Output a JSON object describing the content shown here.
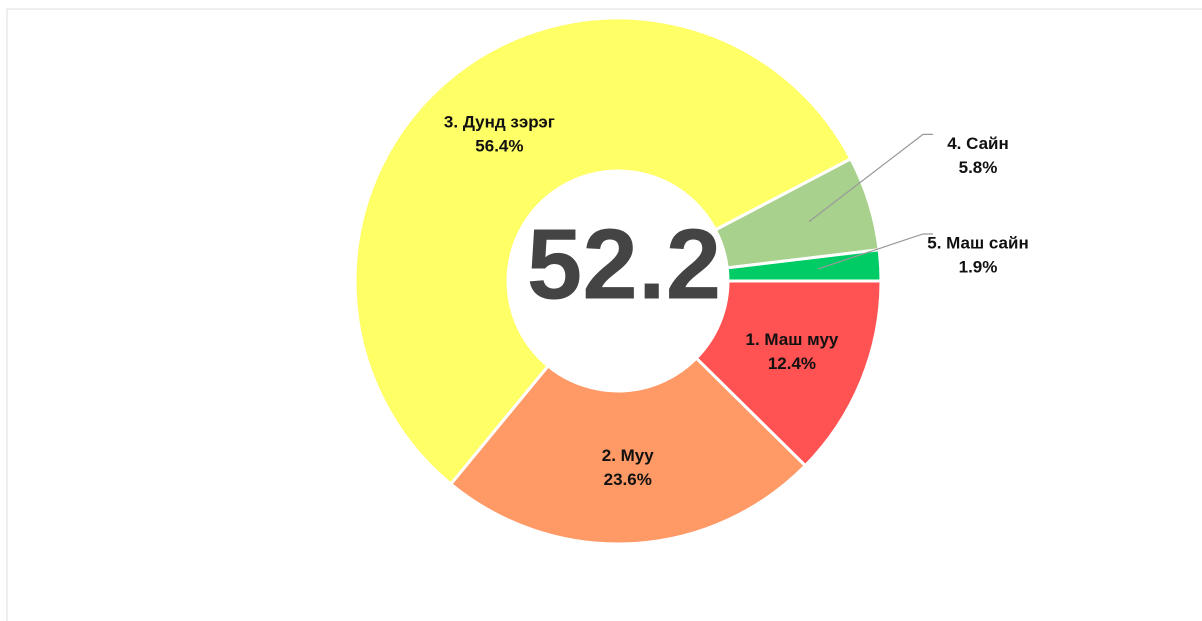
{
  "chart_data": {
    "type": "donut",
    "center_text": "52.2",
    "categories": [
      "1. Маш муу",
      "2. Муу",
      "3. Дунд зэрэг",
      "4. Сайн",
      "5. Маш сайн"
    ],
    "values": [
      12.4,
      23.6,
      56.4,
      5.8,
      1.9
    ],
    "value_labels": [
      "12.4%",
      "23.6%",
      "56.4%",
      "5.8%",
      "1.9%"
    ],
    "colors": [
      "#ff5252",
      "#ff9966",
      "#ffff66",
      "#a9d18e",
      "#00cc66"
    ]
  }
}
